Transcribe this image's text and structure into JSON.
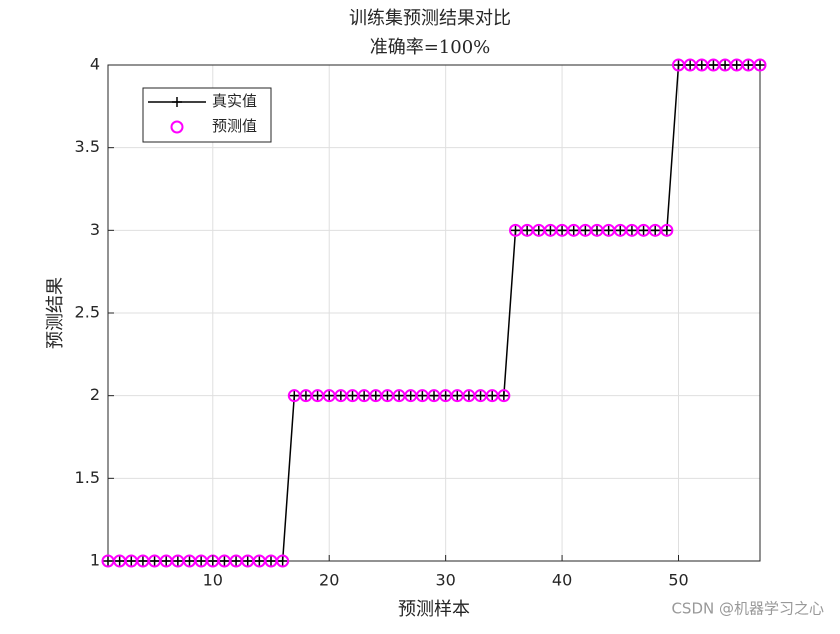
{
  "chart_data": {
    "type": "line",
    "title": "训练集预测结果对比",
    "subtitle": "准确率=100%",
    "xlabel": "预测样本",
    "ylabel": "预测结果",
    "x": [
      1,
      2,
      3,
      4,
      5,
      6,
      7,
      8,
      9,
      10,
      11,
      12,
      13,
      14,
      15,
      16,
      17,
      18,
      19,
      20,
      21,
      22,
      23,
      24,
      25,
      26,
      27,
      28,
      29,
      30,
      31,
      32,
      33,
      34,
      35,
      36,
      37,
      38,
      39,
      40,
      41,
      42,
      43,
      44,
      45,
      46,
      47,
      48,
      49,
      50,
      51,
      52,
      53,
      54,
      55,
      56,
      57
    ],
    "series": [
      {
        "name": "真实值",
        "color": "#000000",
        "marker": "plus",
        "values": [
          1,
          1,
          1,
          1,
          1,
          1,
          1,
          1,
          1,
          1,
          1,
          1,
          1,
          1,
          1,
          1,
          2,
          2,
          2,
          2,
          2,
          2,
          2,
          2,
          2,
          2,
          2,
          2,
          2,
          2,
          2,
          2,
          2,
          2,
          2,
          3,
          3,
          3,
          3,
          3,
          3,
          3,
          3,
          3,
          3,
          3,
          3,
          3,
          3,
          4,
          4,
          4,
          4,
          4,
          4,
          4,
          4
        ]
      },
      {
        "name": "预测值",
        "color": "#ff00ff",
        "marker": "circle",
        "values": [
          1,
          1,
          1,
          1,
          1,
          1,
          1,
          1,
          1,
          1,
          1,
          1,
          1,
          1,
          1,
          1,
          2,
          2,
          2,
          2,
          2,
          2,
          2,
          2,
          2,
          2,
          2,
          2,
          2,
          2,
          2,
          2,
          2,
          2,
          2,
          3,
          3,
          3,
          3,
          3,
          3,
          3,
          3,
          3,
          3,
          3,
          3,
          3,
          3,
          4,
          4,
          4,
          4,
          4,
          4,
          4,
          4
        ]
      }
    ],
    "xlim": [
      1,
      57
    ],
    "xticks": [
      10,
      20,
      30,
      40,
      50
    ],
    "ylim": [
      1,
      4
    ],
    "yticks": [
      1,
      1.5,
      2,
      2.5,
      3,
      3.5,
      4
    ],
    "grid": true,
    "legend": "upper-left",
    "watermark": "CSDN @机器学习之心"
  }
}
